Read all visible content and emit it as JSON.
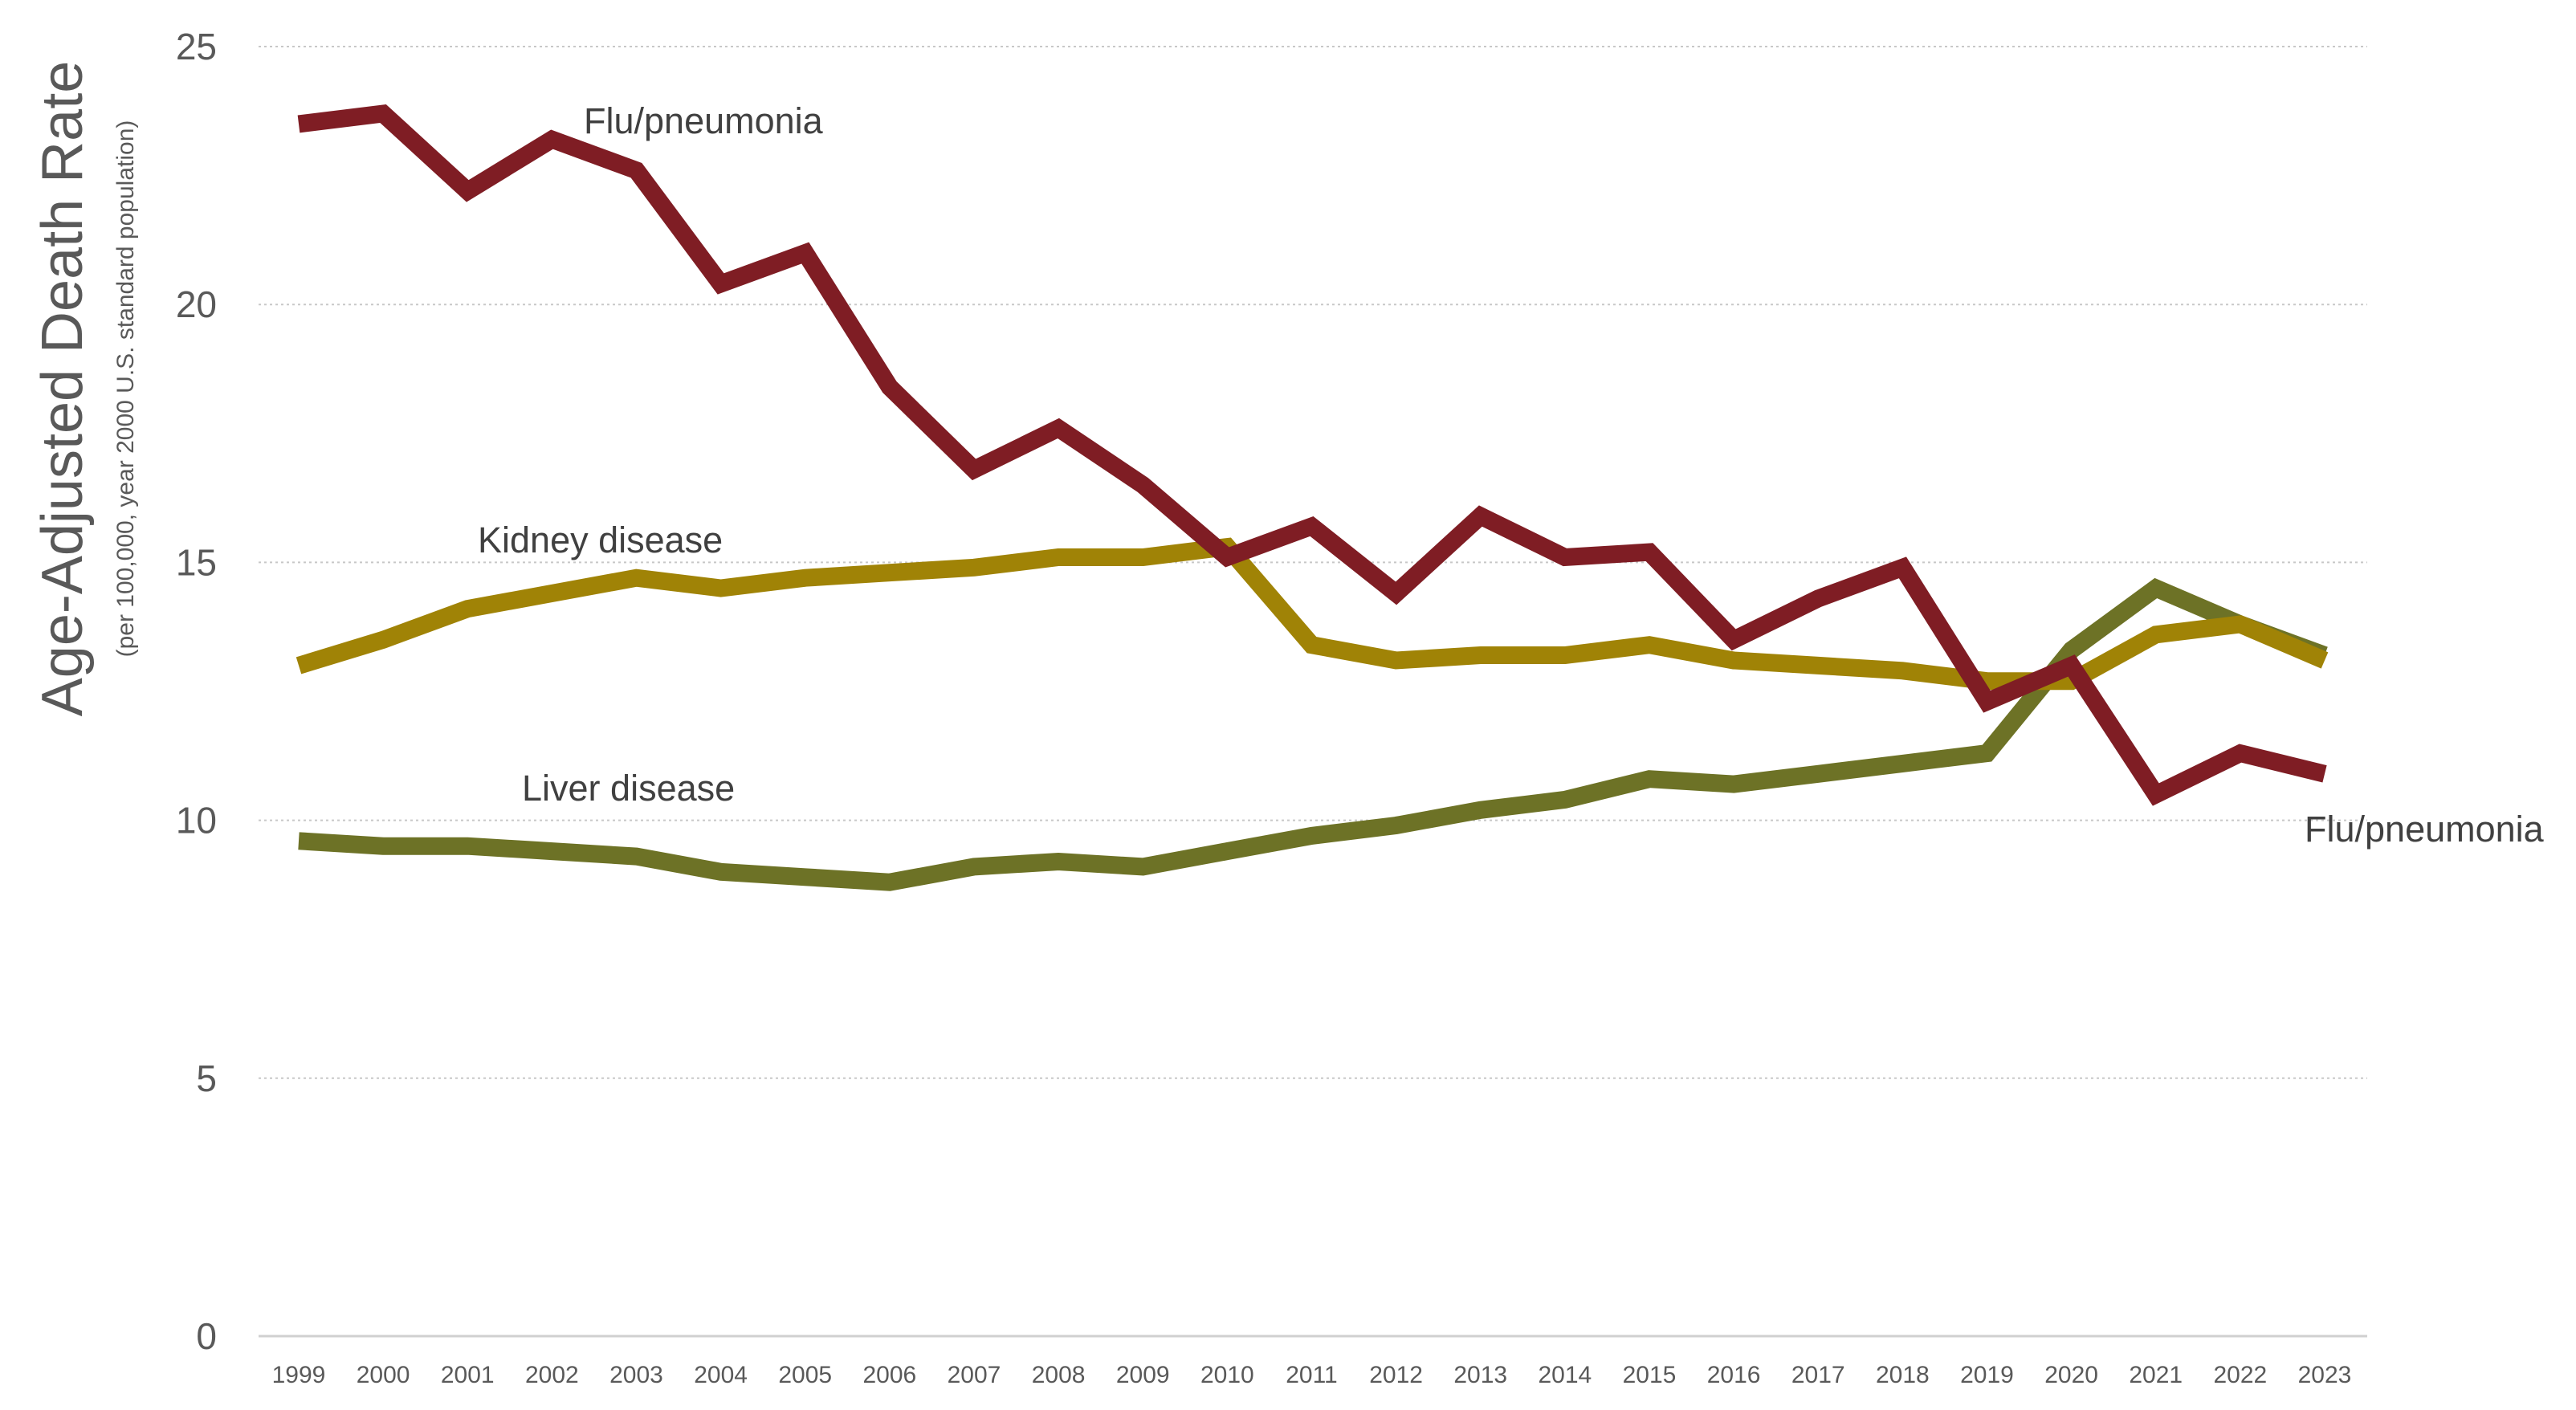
{
  "chart_data": {
    "type": "line",
    "title": "",
    "ylabel": "Age-Adjusted Death Rate",
    "ylabel_sub": "(per 100,000, year 2000 U.S. standard population)",
    "xlabel": "",
    "ylim": [
      0,
      25
    ],
    "yticks": [
      "0",
      "5",
      "10",
      "15",
      "20",
      "25"
    ],
    "grid": "horizontal dotted",
    "legend": "none (direct labels)",
    "x": [
      1999,
      2000,
      2001,
      2002,
      2003,
      2004,
      2005,
      2006,
      2007,
      2008,
      2009,
      2010,
      2011,
      2012,
      2013,
      2014,
      2015,
      2016,
      2017,
      2018,
      2019,
      2020,
      2021,
      2022,
      2023
    ],
    "xtick_labels": [
      "1999",
      "2000",
      "2001",
      "2002",
      "2003",
      "2004",
      "2005",
      "2006",
      "2007",
      "2008",
      "2009",
      "2010",
      "2011",
      "2012",
      "2013",
      "2014",
      "2015",
      "2016",
      "2017",
      "2018",
      "2019",
      "2020",
      "2021",
      "2022",
      "2023"
    ],
    "series": [
      {
        "name": "Flu/pneumonia",
        "color": "#7F1D24",
        "values": [
          23.5,
          23.7,
          22.2,
          23.2,
          22.6,
          20.4,
          21.0,
          18.4,
          16.8,
          17.6,
          16.5,
          15.1,
          15.7,
          14.4,
          15.9,
          15.1,
          15.2,
          13.5,
          14.3,
          14.9,
          12.3,
          13.0,
          10.5,
          11.3,
          10.9
        ]
      },
      {
        "name": "Kidney disease",
        "color": "#A08306",
        "values": [
          13.0,
          13.5,
          14.1,
          14.4,
          14.7,
          14.5,
          14.7,
          14.8,
          14.9,
          15.1,
          15.1,
          15.3,
          13.4,
          13.1,
          13.2,
          13.2,
          13.4,
          13.1,
          13.0,
          12.9,
          12.7,
          12.7,
          13.6,
          13.8,
          13.1
        ]
      },
      {
        "name": "Liver disease",
        "color": "#6D7226",
        "values": [
          9.6,
          9.5,
          9.5,
          9.4,
          9.3,
          9.0,
          8.9,
          8.8,
          9.1,
          9.2,
          9.1,
          9.4,
          9.7,
          9.9,
          10.2,
          10.4,
          10.8,
          10.7,
          10.9,
          11.1,
          11.3,
          13.3,
          14.5,
          13.8,
          13.2
        ]
      }
    ],
    "labels": {
      "flu_top": "Flu/pneumonia",
      "flu_right": "Flu/pneumonia",
      "kidney": "Kidney disease",
      "liver": "Liver disease"
    },
    "colors": {
      "grid": "#c8c8c8",
      "axis": "#d0d0d0",
      "tick_text": "#595959",
      "label_text": "#404040"
    }
  }
}
